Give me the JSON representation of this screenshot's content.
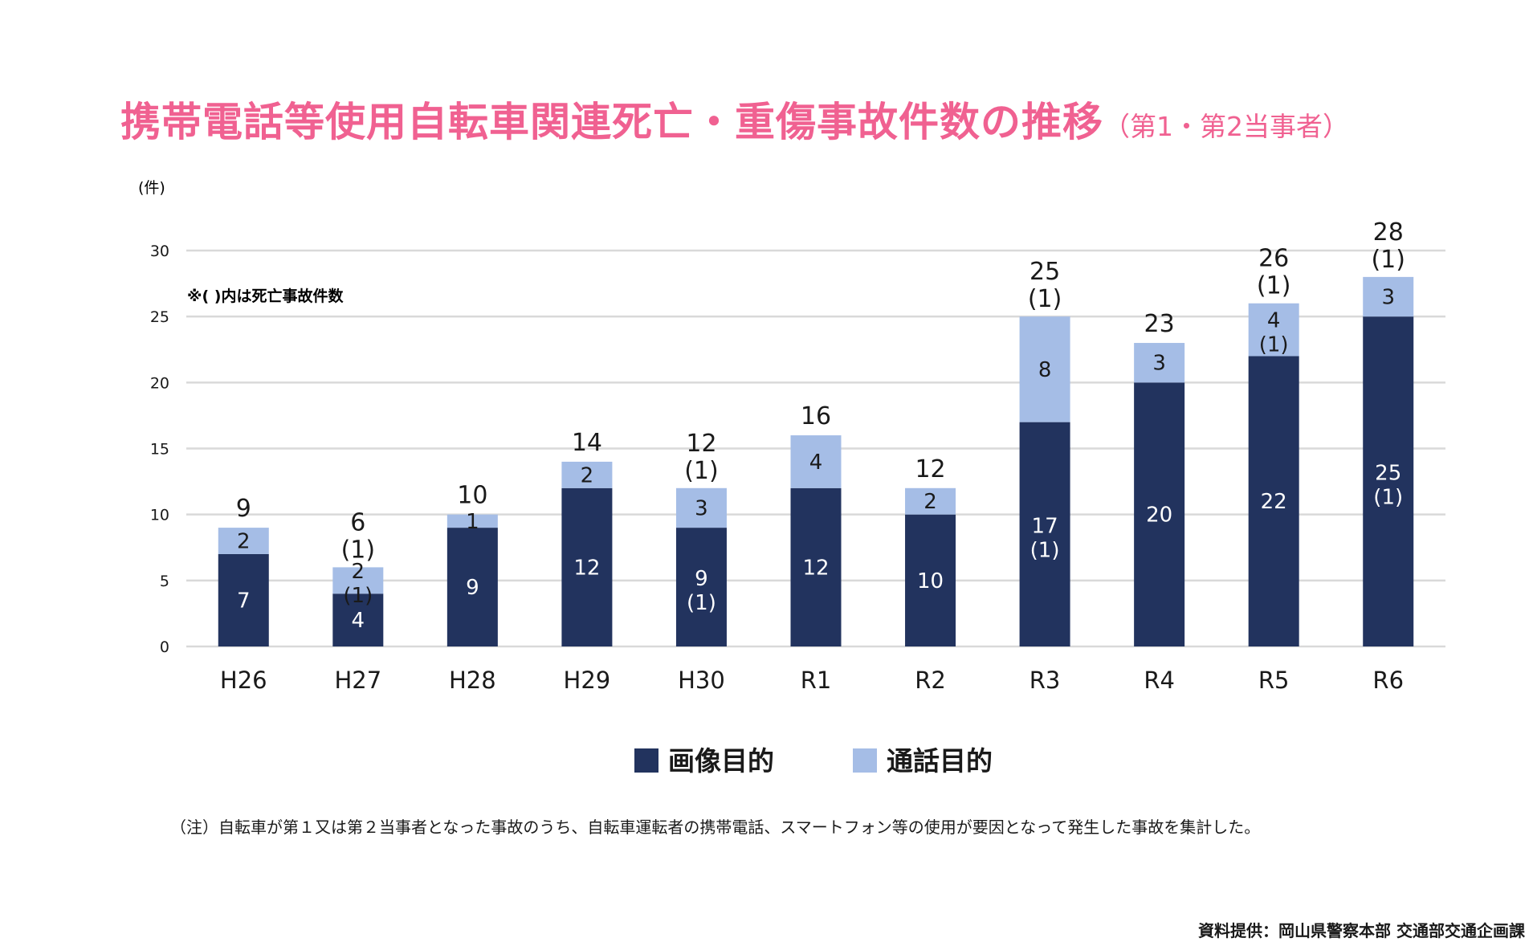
{
  "title": "携帯電話等使用自転車関連死亡・重傷事故件数の推移",
  "title_suffix": "（第1・第2当事者）",
  "note_top": "※( )内は死亡事故件数",
  "note_bottom": "（注）自転車が第１又は第２当事者となった事故のうち、自転車運転者の携帯電話、スマートフォン等の使用が要因となって発生した事故を集計した。",
  "source": "資料提供：岡山県警察本部 交通部交通企画課",
  "chart_data": {
    "type": "bar",
    "stacked": true,
    "title": "携帯電話等使用自転車関連死亡・重傷事故件数の推移（第1・第2当事者）",
    "ylabel": "(件)",
    "xlabel": "",
    "ylim": [
      0,
      30
    ],
    "yticks": [
      0,
      5,
      10,
      15,
      20,
      25,
      30
    ],
    "grid": true,
    "legend_position": "bottom-center",
    "categories": [
      "H26",
      "H27",
      "H28",
      "H29",
      "H30",
      "R1",
      "R2",
      "R3",
      "R4",
      "R5",
      "R6"
    ],
    "series": [
      {
        "name": "画像目的",
        "color": "#22335e",
        "label_color": "#ffffff",
        "values": [
          7,
          4,
          9,
          12,
          9,
          12,
          10,
          17,
          20,
          22,
          25
        ],
        "fatal": [
          null,
          null,
          null,
          null,
          1,
          null,
          null,
          1,
          null,
          null,
          1
        ]
      },
      {
        "name": "通話目的",
        "color": "#a5bde6",
        "label_color": "#1a1a1a",
        "values": [
          2,
          2,
          1,
          2,
          3,
          4,
          2,
          8,
          3,
          4,
          3
        ],
        "fatal": [
          null,
          1,
          null,
          null,
          null,
          null,
          null,
          null,
          null,
          1,
          null
        ]
      }
    ],
    "totals": [
      9,
      6,
      10,
      14,
      12,
      16,
      12,
      25,
      23,
      26,
      28
    ],
    "totals_fatal": [
      null,
      1,
      null,
      null,
      1,
      null,
      null,
      1,
      null,
      1,
      1
    ]
  }
}
